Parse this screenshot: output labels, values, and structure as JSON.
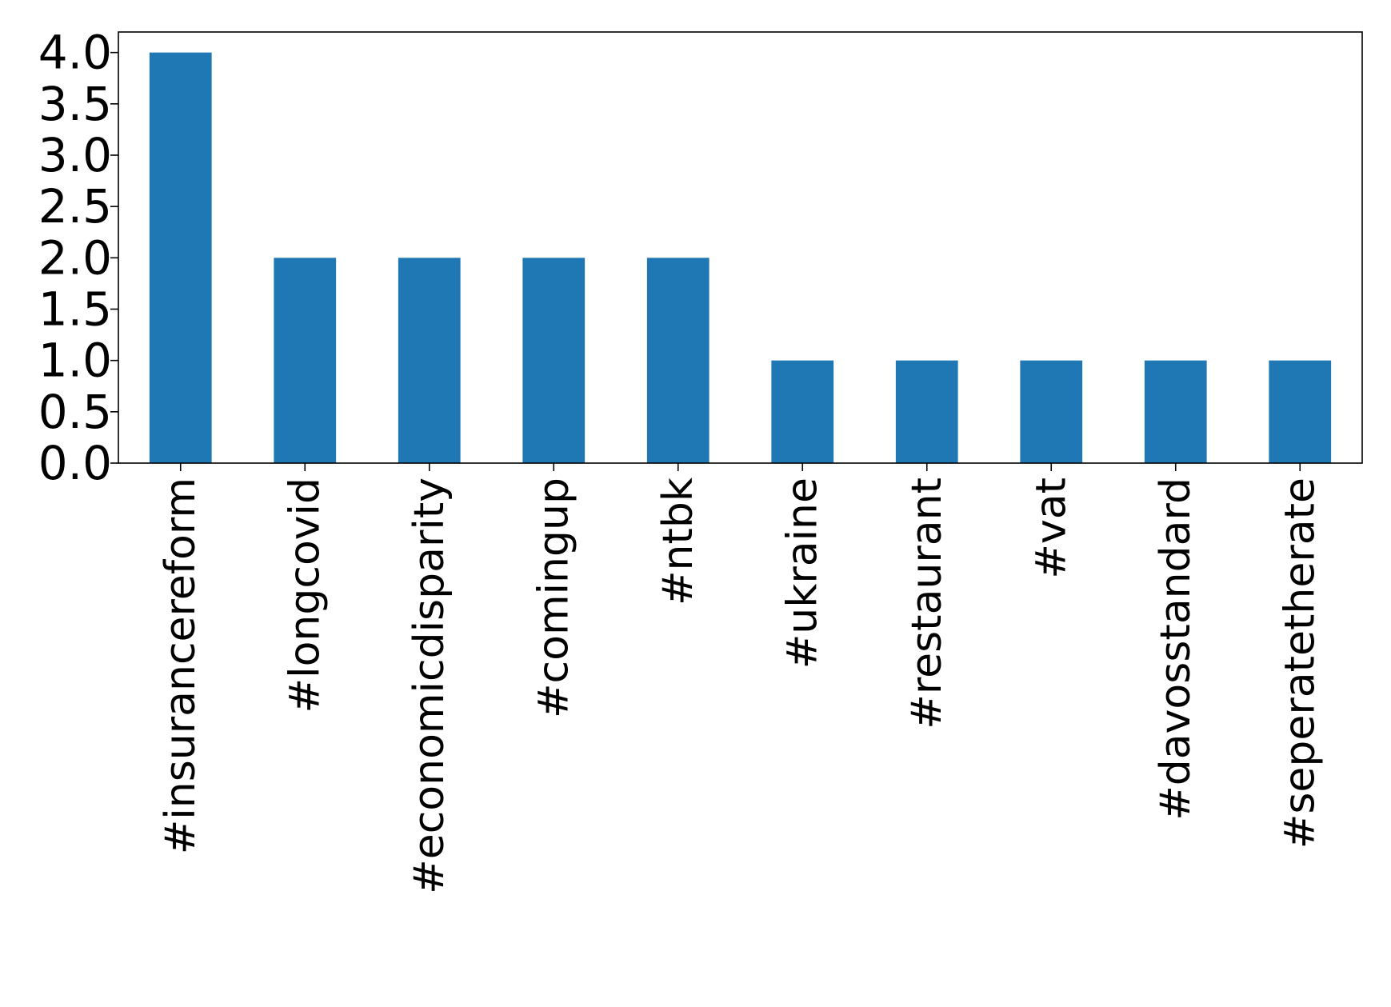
{
  "chart_data": {
    "type": "bar",
    "title": "",
    "xlabel": "",
    "ylabel": "",
    "categories": [
      "#insurancereform",
      "#longcovid",
      "#economicdisparity",
      "#comingup",
      "#ntbk",
      "#ukraine",
      "#restaurant",
      "#vat",
      "#davosstandard",
      "#seperatetherate"
    ],
    "values": [
      4,
      2,
      2,
      2,
      2,
      1,
      1,
      1,
      1,
      1
    ],
    "ylim": [
      0,
      4.2
    ],
    "yticks": [
      0.0,
      0.5,
      1.0,
      1.5,
      2.0,
      2.5,
      3.0,
      3.5,
      4.0
    ],
    "ytick_labels": [
      "0.0",
      "0.5",
      "1.0",
      "1.5",
      "2.0",
      "2.5",
      "3.0",
      "3.5",
      "4.0"
    ],
    "bar_color": "#1f77b4",
    "grid": false,
    "legend": "none"
  }
}
